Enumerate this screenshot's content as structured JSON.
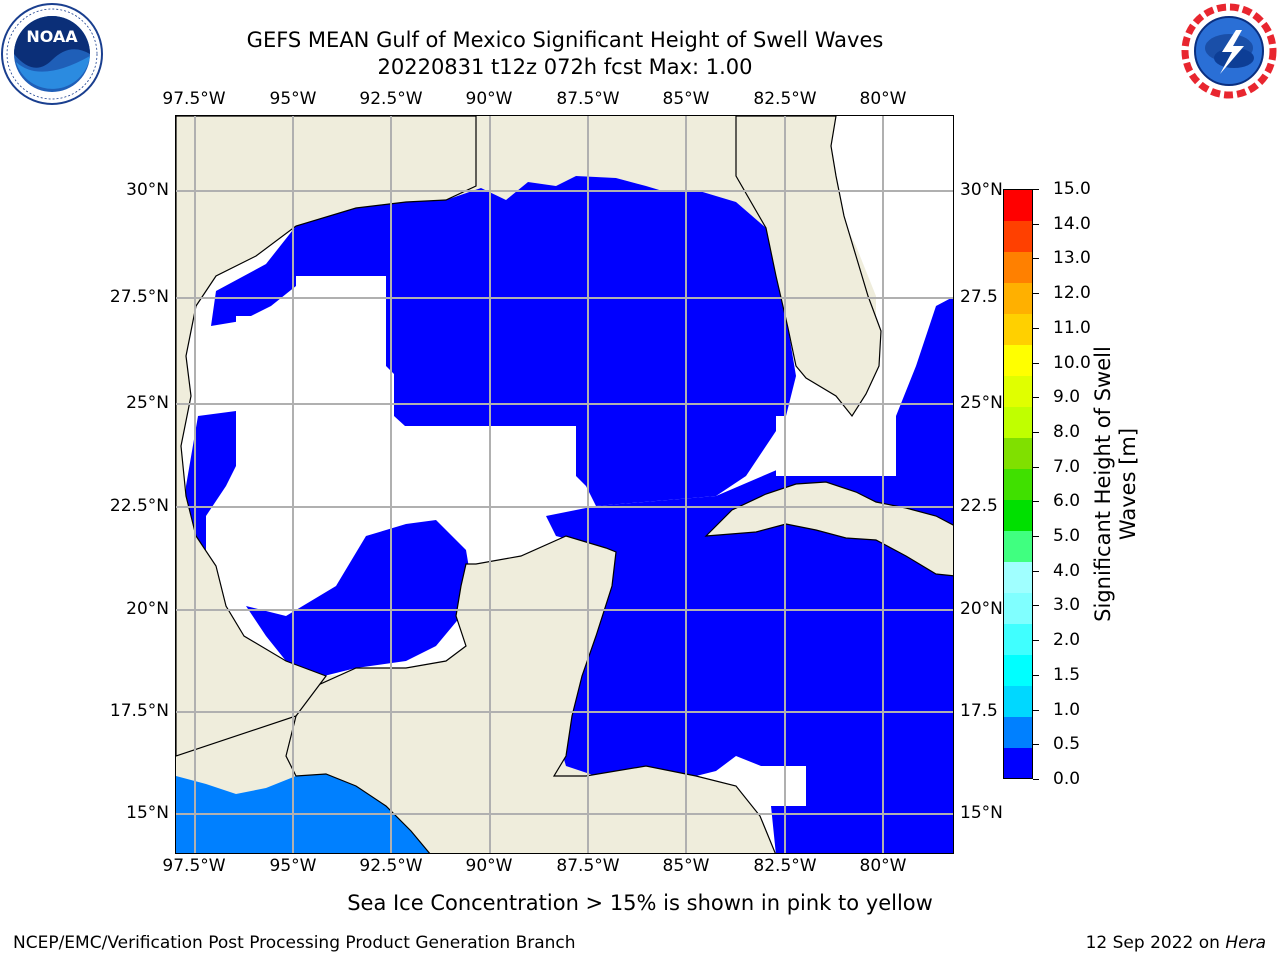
{
  "title": {
    "line1": "GEFS MEAN Gulf of Mexico Significant Height of Swell Waves",
    "line2": "20220831 t12z 072h fcst   Max: 1.00"
  },
  "logos": {
    "left": {
      "name": "NOAA",
      "ring_text": "NATIONAL OCEANIC AND ATMOSPHERIC ADMINISTRATION · U.S. DEPARTMENT OF COMMERCE"
    },
    "right": {
      "name": "NATIONAL WEATHER SERVICE"
    }
  },
  "map": {
    "lon_labels": [
      "97.5°W",
      "95°W",
      "92.5°W",
      "90°W",
      "87.5°W",
      "85°W",
      "82.5°W",
      "80°W"
    ],
    "lat_labels": [
      "30°N",
      "27.5°N",
      "25°N",
      "22.5°N",
      "20°N",
      "17.5°N",
      "15°N"
    ],
    "lat_labels_right": [
      "30°N",
      "27.5",
      "25°N",
      "22.5",
      "20°N",
      "17.5",
      "15°N"
    ],
    "colors": {
      "land": "#efeddc",
      "water_low": "#0000ff",
      "water_mid": "#0080ff",
      "no_data": "#ffffff",
      "grid": "#b0b0b0"
    }
  },
  "colorbar": {
    "title_line1": "Significant Height of Swell",
    "title_line2": "Waves [m]",
    "labels": [
      "0.0",
      "0.5",
      "1.0",
      "1.5",
      "2.0",
      "3.0",
      "4.0",
      "5.0",
      "6.0",
      "7.0",
      "8.0",
      "9.0",
      "10.0",
      "11.0",
      "12.0",
      "13.0",
      "14.0",
      "15.0"
    ],
    "colors": [
      "#0000ff",
      "#0080ff",
      "#00d8ff",
      "#00ffff",
      "#40ffff",
      "#80ffff",
      "#a0ffff",
      "#40ff80",
      "#00e000",
      "#40e000",
      "#80e000",
      "#c0ff00",
      "#e0ff00",
      "#ffff00",
      "#ffd000",
      "#ffb000",
      "#ff8000",
      "#ff4000",
      "#ff0000"
    ]
  },
  "footer": {
    "note": "Sea Ice Concentration > 15% is shown in pink to yellow",
    "left": "NCEP/EMC/Verification Post Processing Product Generation Branch",
    "right_date": "12 Sep 2022 on",
    "right_host": "Hera"
  }
}
